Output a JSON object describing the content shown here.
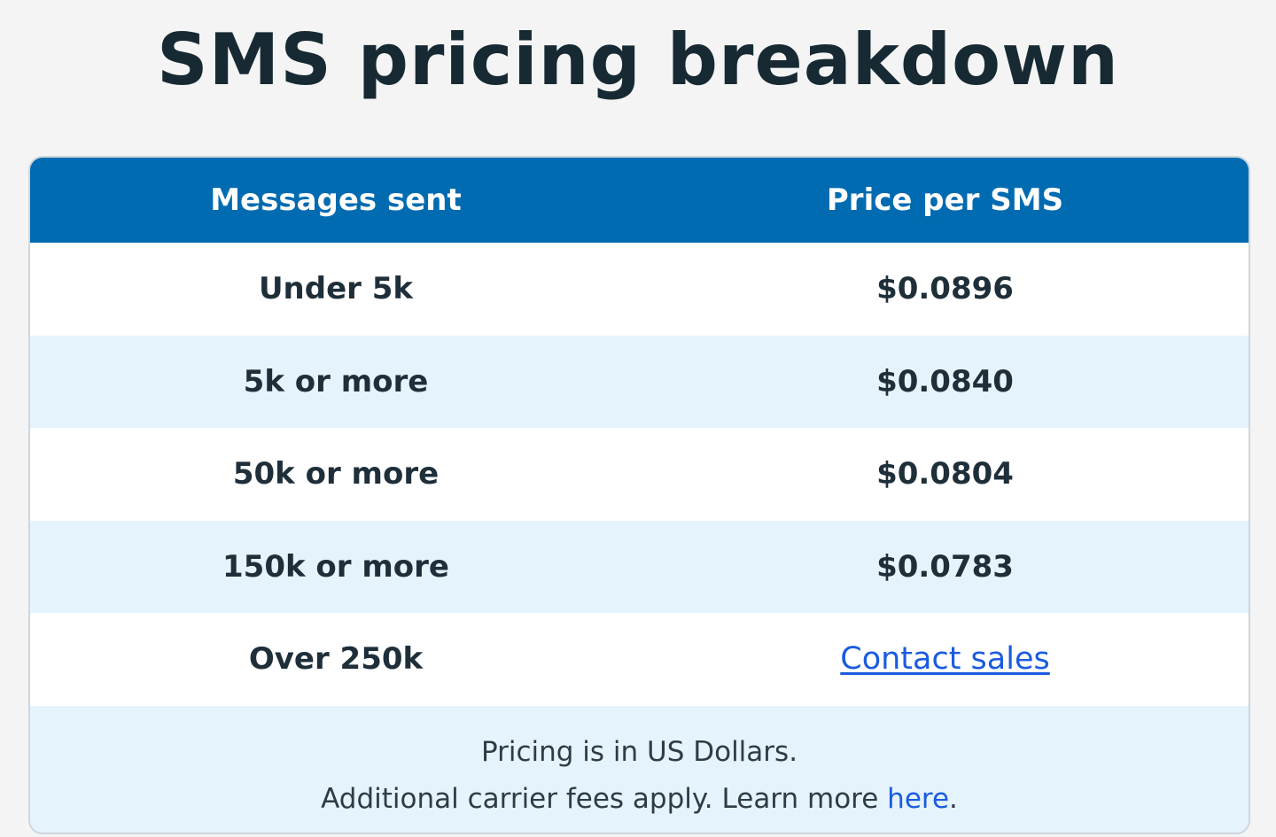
{
  "page": {
    "title": "SMS pricing breakdown"
  },
  "table": {
    "headers": {
      "messages": "Messages sent",
      "price": "Price per SMS"
    },
    "rows": [
      {
        "messages": "Under 5k",
        "price": "$0.0896"
      },
      {
        "messages": "5k or more",
        "price": "$0.0840"
      },
      {
        "messages": "50k or more",
        "price": "$0.0804"
      },
      {
        "messages": "150k or more",
        "price": "$0.0783"
      },
      {
        "messages": "Over 250k",
        "price_link": "Contact sales"
      }
    ]
  },
  "footer": {
    "line1": "Pricing is in US Dollars.",
    "line2_prefix": "Additional carrier fees apply. Learn more ",
    "line2_link": "here",
    "line2_suffix": "."
  },
  "colors": {
    "header_bg": "#006bb0",
    "alt_row_bg": "#e5f3fd",
    "link": "#1b5be0",
    "text": "#1e2f3a"
  }
}
